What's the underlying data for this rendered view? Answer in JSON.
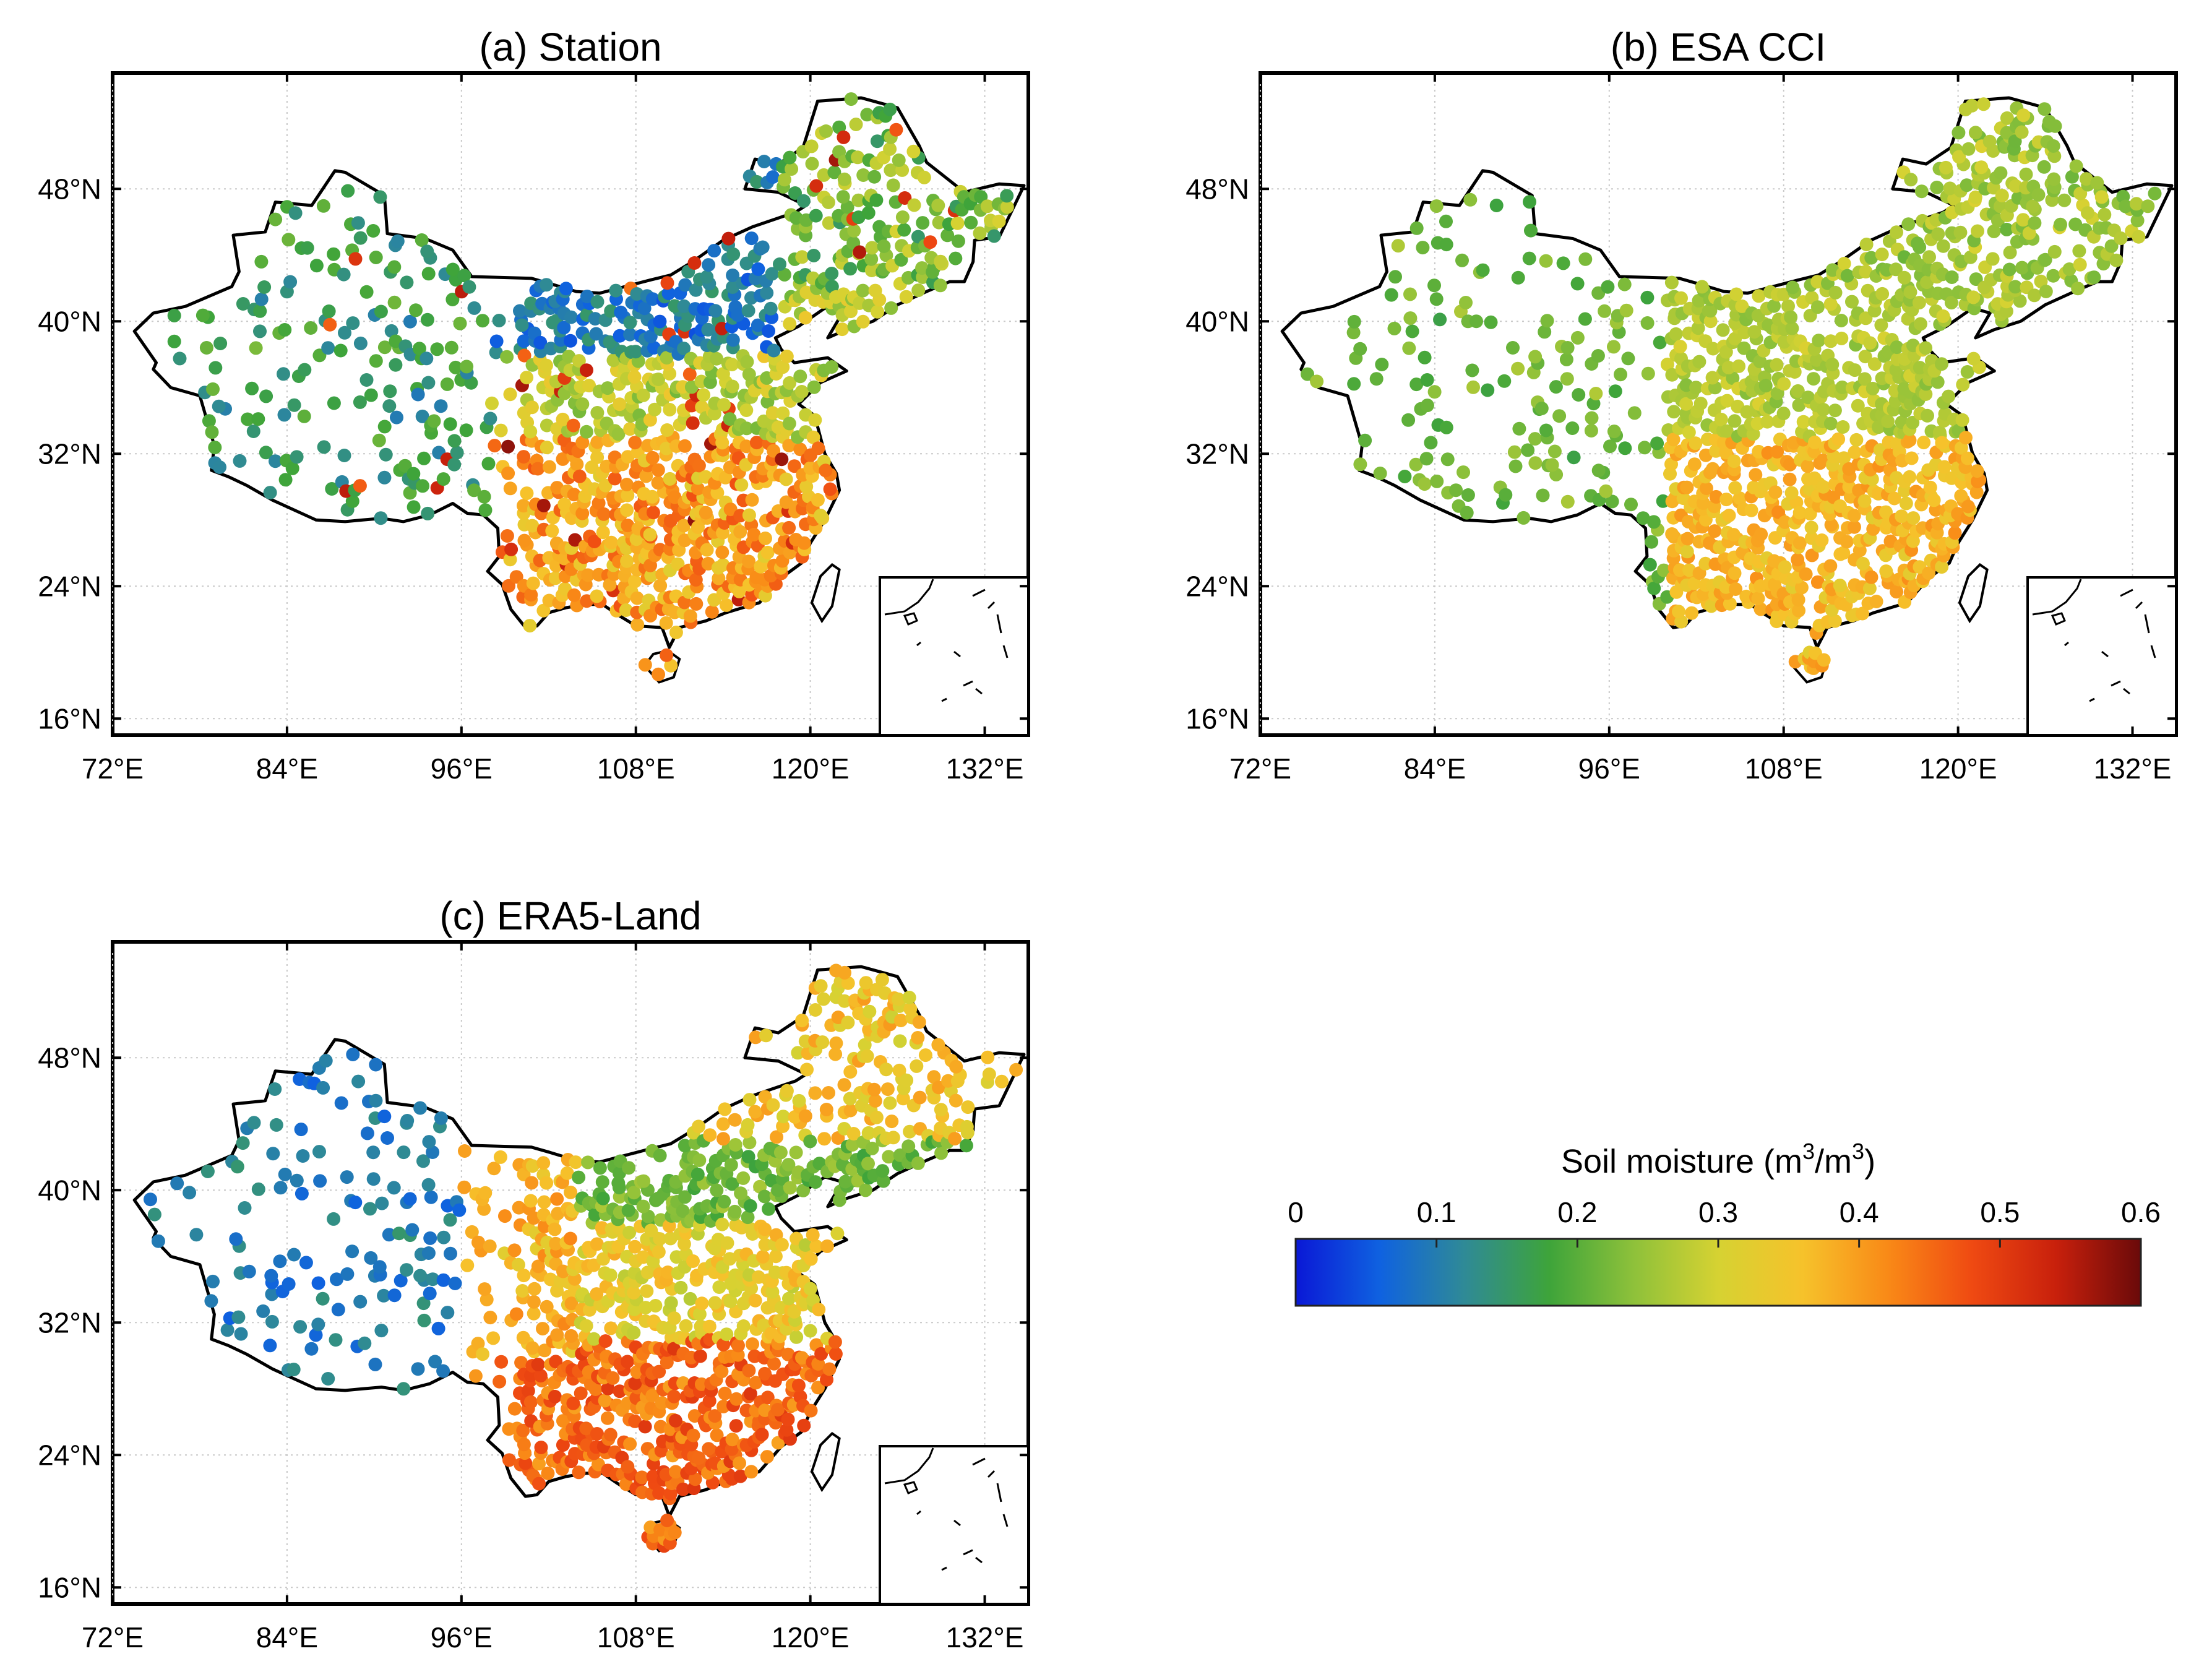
{
  "panels": [
    {
      "id": "a",
      "title": "(a) Station",
      "pattern": "station"
    },
    {
      "id": "b",
      "title": "(b) ESA CCI",
      "pattern": "esa"
    },
    {
      "id": "c",
      "title": "(c) ERA5-Land",
      "pattern": "era5"
    }
  ],
  "axes": {
    "lon": {
      "range": [
        72,
        135
      ],
      "ticks": [
        72,
        84,
        96,
        108,
        120,
        132
      ],
      "labels": [
        "72°E",
        "84°E",
        "96°E",
        "108°E",
        "120°E",
        "132°E"
      ]
    },
    "lat": {
      "range": [
        15,
        55
      ],
      "ticks": [
        16,
        24,
        32,
        40,
        48
      ],
      "labels": [
        "16°N",
        "24°N",
        "32°N",
        "40°N",
        "48°N"
      ]
    }
  },
  "colorbar": {
    "title": "Soil moisture (m",
    "sup1": "3",
    "mid": "/m",
    "sup2": ")",
    "sup2_text": "3",
    "range": [
      0,
      0.6
    ],
    "ticks": [
      "0",
      "0.1",
      "0.2",
      "0.3",
      "0.4",
      "0.5",
      "0.6"
    ],
    "tick_values": [
      0,
      0.1,
      0.2,
      0.3,
      0.4,
      0.5,
      0.6
    ],
    "colors": [
      "#0a18d6",
      "#0f62e0",
      "#2f8a96",
      "#3ea43a",
      "#8ec13a",
      "#d6d232",
      "#f6c22b",
      "#f98a17",
      "#ef4a12",
      "#c8200c",
      "#6a0a0a"
    ]
  },
  "chart_data": {
    "type": "scatter-map",
    "region": "China",
    "variable": "Soil moisture",
    "units": "m3/m3",
    "value_range": [
      0,
      0.6
    ],
    "panels": [
      {
        "title": "(a) Station",
        "description_values": {
          "northwest": 0.1,
          "north_china": 0.08,
          "northeast": 0.22,
          "south": 0.38
        }
      },
      {
        "title": "(b) ESA CCI",
        "description_values": {
          "northwest": 0.22,
          "north_china": 0.25,
          "northeast": 0.28,
          "south": 0.37
        }
      },
      {
        "title": "(c) ERA5-Land",
        "description_values": {
          "northwest": 0.1,
          "north_china": 0.25,
          "northeast": 0.34,
          "south": 0.45
        }
      }
    ]
  }
}
